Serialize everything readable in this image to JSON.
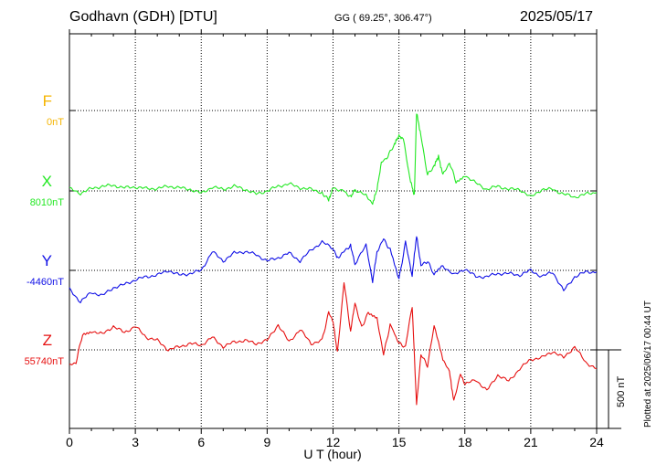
{
  "header": {
    "station": "Godhavn (GDH)  [DTU]",
    "coords": "GG ( 69.25°, 306.47°)",
    "date": "2025/05/17"
  },
  "footer": {
    "plotted": "Plotted at 2025/06/17 00:44 UT"
  },
  "chart_data": {
    "type": "line",
    "xlabel": "U T (hour)",
    "xlim": [
      0,
      24
    ],
    "x_ticks": [
      "0",
      "3",
      "6",
      "9",
      "12",
      "15",
      "18",
      "21",
      "24"
    ],
    "scale_bar_nT": 500,
    "scale_bar_label": "500 nT",
    "grid": true,
    "series": [
      {
        "name": "F",
        "baseline_label": "0nT",
        "color": "#f5b400",
        "x": [],
        "values": []
      },
      {
        "name": "X",
        "baseline_label": "8010nT",
        "color": "#22e822",
        "x": [
          0,
          0.5,
          1,
          1.5,
          2,
          2.5,
          3,
          3.5,
          4,
          4.5,
          5,
          5.5,
          6,
          6.5,
          7,
          7.5,
          8,
          8.5,
          9,
          9.5,
          10,
          10.5,
          11,
          11.5,
          11.8,
          12,
          12.5,
          12.8,
          13,
          13.5,
          13.8,
          14,
          14.2,
          14.5,
          14.8,
          15,
          15.2,
          15.5,
          15.7,
          15.8,
          16,
          16.3,
          16.6,
          16.8,
          17,
          17.3,
          17.6,
          18,
          18.5,
          19,
          19.5,
          20,
          20.5,
          21,
          21.5,
          22,
          22.5,
          23,
          23.5,
          24
        ],
        "values": [
          15,
          -15,
          15,
          30,
          35,
          20,
          25,
          15,
          15,
          30,
          20,
          10,
          -15,
          25,
          10,
          30,
          10,
          -20,
          0,
          30,
          45,
          20,
          10,
          -10,
          -60,
          20,
          0,
          -40,
          10,
          -30,
          -80,
          10,
          180,
          220,
          300,
          350,
          330,
          80,
          -30,
          500,
          350,
          100,
          160,
          220,
          100,
          180,
          60,
          100,
          50,
          10,
          30,
          10,
          10,
          -40,
          10,
          10,
          -20,
          -40,
          -20,
          -10
        ]
      },
      {
        "name": "Y",
        "baseline_label": "-4460nT",
        "color": "#1010e6",
        "x": [
          0,
          0.5,
          1,
          1.5,
          2,
          2.5,
          3,
          3.5,
          4,
          4.5,
          5,
          5.5,
          6,
          6.5,
          7,
          7.5,
          8,
          8.5,
          9,
          9.5,
          10,
          10.5,
          11,
          11.5,
          12,
          12.2,
          12.5,
          12.8,
          13,
          13.5,
          13.8,
          14,
          14.3,
          14.6,
          15,
          15.3,
          15.6,
          15.8,
          16,
          16.3,
          16.6,
          17,
          17.5,
          18,
          18.5,
          19,
          19.5,
          20,
          20.5,
          21,
          21.5,
          22,
          22.5,
          23,
          23.5,
          24
        ],
        "values": [
          -120,
          -200,
          -140,
          -160,
          -110,
          -90,
          -60,
          -40,
          -30,
          0,
          -30,
          -20,
          0,
          120,
          60,
          110,
          120,
          100,
          60,
          80,
          110,
          60,
          130,
          180,
          140,
          80,
          120,
          160,
          40,
          160,
          -70,
          120,
          200,
          130,
          -60,
          180,
          -30,
          220,
          30,
          60,
          -30,
          30,
          -30,
          10,
          -40,
          -40,
          -20,
          -20,
          -30,
          0,
          -40,
          -10,
          -130,
          -40,
          -10,
          -10
        ]
      },
      {
        "name": "Z",
        "baseline_label": "55740nT",
        "color": "#e61010",
        "x": [
          0,
          0.3,
          0.6,
          1,
          1.5,
          2,
          2.5,
          3,
          3.5,
          4,
          4.5,
          5,
          5.5,
          6,
          6.5,
          7,
          7.5,
          8,
          8.5,
          9,
          9.5,
          10,
          10.5,
          11,
          11.5,
          11.8,
          12,
          12.2,
          12.5,
          12.8,
          13,
          13.3,
          13.6,
          14,
          14.3,
          14.6,
          15,
          15.3,
          15.6,
          15.8,
          16,
          16.3,
          16.6,
          17,
          17.3,
          17.5,
          17.8,
          18,
          18.5,
          19,
          19.5,
          20,
          20.5,
          21,
          21.5,
          22,
          22.5,
          23,
          23.5,
          24
        ],
        "values": [
          -100,
          -80,
          100,
          120,
          100,
          150,
          110,
          150,
          80,
          60,
          0,
          20,
          40,
          30,
          80,
          20,
          50,
          60,
          40,
          60,
          160,
          50,
          130,
          40,
          60,
          240,
          180,
          -20,
          430,
          120,
          300,
          140,
          240,
          200,
          -30,
          160,
          40,
          20,
          280,
          -350,
          -30,
          -100,
          150,
          -60,
          -140,
          -330,
          -150,
          -220,
          -190,
          -260,
          -160,
          -200,
          -120,
          -60,
          -50,
          -10,
          -50,
          20,
          -80,
          -120
        ]
      }
    ]
  }
}
